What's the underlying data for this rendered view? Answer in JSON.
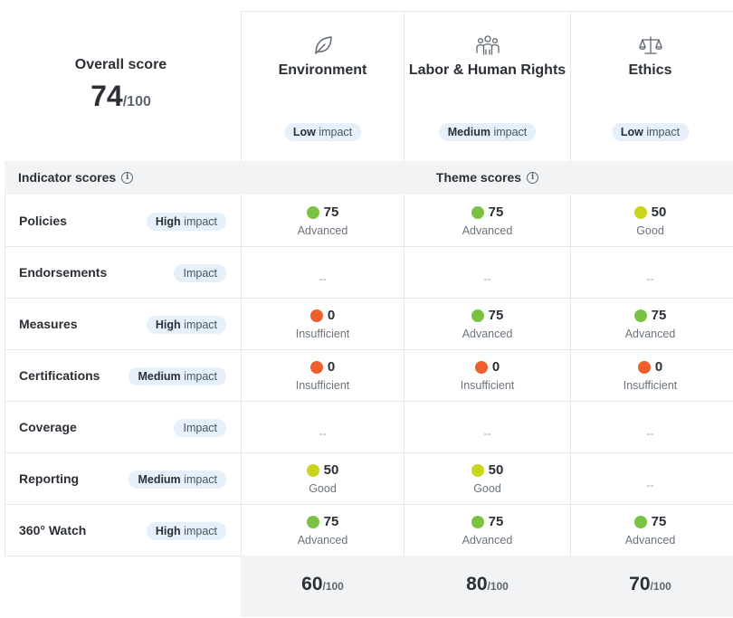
{
  "overall": {
    "label": "Overall score",
    "score": "74",
    "out_of": "/100"
  },
  "themes": [
    {
      "name": "Environment",
      "icon": "leaf-icon",
      "impact_level": "Low",
      "impact_word": "impact"
    },
    {
      "name": "Labor & Human Rights",
      "icon": "people-group-icon",
      "impact_level": "Medium",
      "impact_word": "impact"
    },
    {
      "name": "Ethics",
      "icon": "scales-icon",
      "impact_level": "Low",
      "impact_word": "impact"
    }
  ],
  "header": {
    "indicator_scores": "Indicator scores",
    "theme_scores": "Theme scores",
    "info_icon": "info-icon"
  },
  "indicators": [
    {
      "name": "Policies",
      "impact_level": "High",
      "impact_word": "impact",
      "cells": [
        {
          "score": "75",
          "level": "Advanced"
        },
        {
          "score": "75",
          "level": "Advanced"
        },
        {
          "score": "50",
          "level": "Good"
        }
      ]
    },
    {
      "name": "Endorsements",
      "impact_level": "",
      "impact_word": "Impact",
      "cells": [
        {
          "dash": "--"
        },
        {
          "dash": "--"
        },
        {
          "dash": "--"
        }
      ]
    },
    {
      "name": "Measures",
      "impact_level": "High",
      "impact_word": "impact",
      "cells": [
        {
          "score": "0",
          "level": "Insufficient"
        },
        {
          "score": "75",
          "level": "Advanced"
        },
        {
          "score": "75",
          "level": "Advanced"
        }
      ]
    },
    {
      "name": "Certifications",
      "impact_level": "Medium",
      "impact_word": "impact",
      "cells": [
        {
          "score": "0",
          "level": "Insufficient"
        },
        {
          "score": "0",
          "level": "Insufficient"
        },
        {
          "score": "0",
          "level": "Insufficient"
        }
      ]
    },
    {
      "name": "Coverage",
      "impact_level": "",
      "impact_word": "Impact",
      "cells": [
        {
          "dash": "--"
        },
        {
          "dash": "--"
        },
        {
          "dash": "--"
        }
      ]
    },
    {
      "name": "Reporting",
      "impact_level": "Medium",
      "impact_word": "impact",
      "cells": [
        {
          "score": "50",
          "level": "Good"
        },
        {
          "score": "50",
          "level": "Good"
        },
        {
          "dash": "--"
        }
      ]
    },
    {
      "name": "360° Watch",
      "impact_level": "High",
      "impact_word": "impact",
      "cells": [
        {
          "score": "75",
          "level": "Advanced"
        },
        {
          "score": "75",
          "level": "Advanced"
        },
        {
          "score": "75",
          "level": "Advanced"
        }
      ]
    }
  ],
  "totals": [
    {
      "score": "60",
      "out_of": "/100"
    },
    {
      "score": "80",
      "out_of": "/100"
    },
    {
      "score": "70",
      "out_of": "/100"
    }
  ],
  "level_colors": {
    "Advanced": "#7cc242",
    "Good": "#cbd41c",
    "Insufficient": "#ee5f30"
  }
}
